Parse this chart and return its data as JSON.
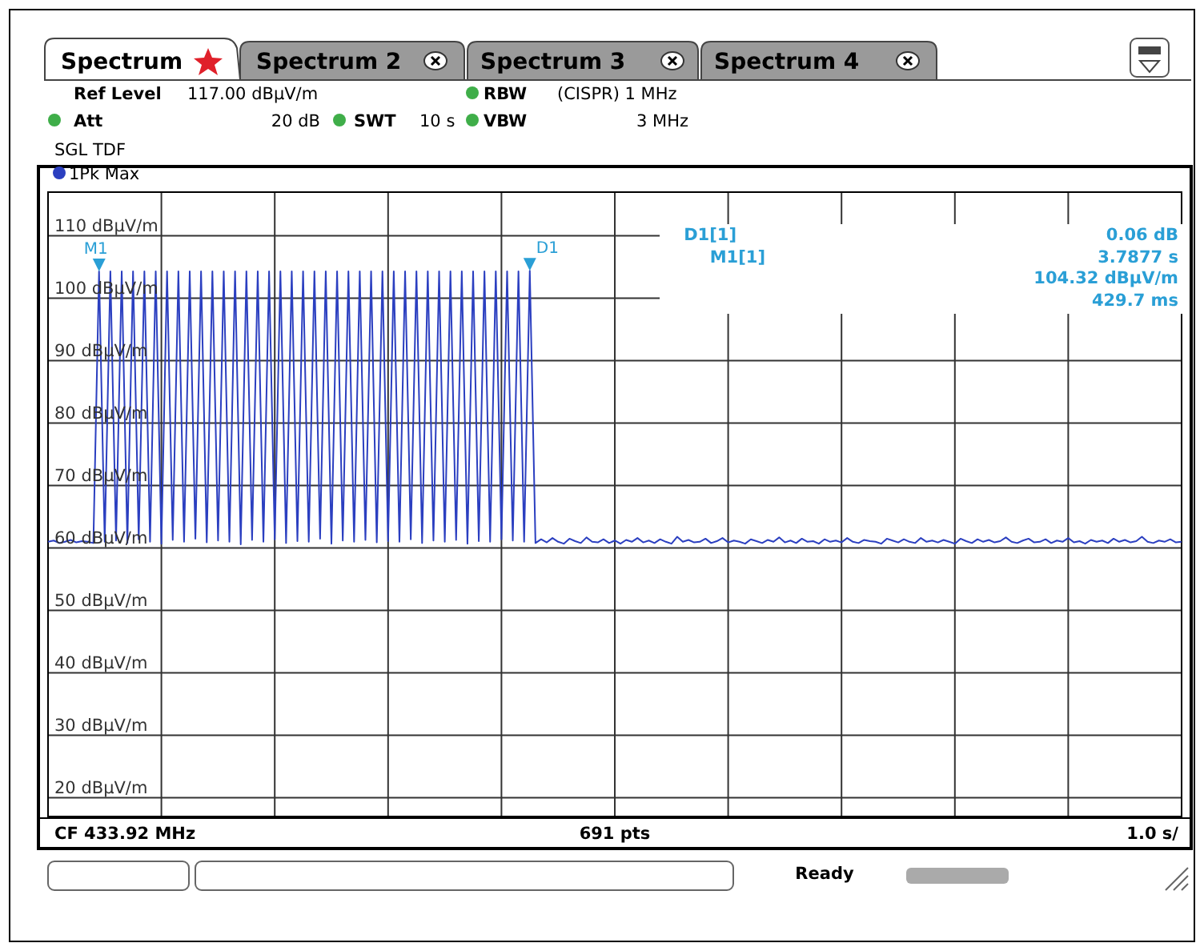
{
  "chart_data": {
    "type": "line",
    "ylim": [
      17,
      117
    ],
    "yticks": [
      {
        "value": 20,
        "label": "20 dBµV/m"
      },
      {
        "value": 30,
        "label": "30 dBµV/m"
      },
      {
        "value": 40,
        "label": "40 dBµV/m"
      },
      {
        "value": 50,
        "label": "50 dBµV/m"
      },
      {
        "value": 60,
        "label": "60 dBµV/m"
      },
      {
        "value": 70,
        "label": "70 dBµV/m"
      },
      {
        "value": 80,
        "label": "80 dBµV/m"
      },
      {
        "value": 90,
        "label": "90 dBµV/m"
      },
      {
        "value": 100,
        "label": "100 dBµV/m"
      },
      {
        "value": 110,
        "label": "110 dBµV/m"
      }
    ],
    "categories": [
      null,
      null,
      null,
      null,
      null,
      null,
      null,
      null,
      null,
      null,
      null,
      null,
      null,
      null,
      null,
      null,
      null,
      null,
      null,
      null,
      null,
      null,
      null,
      null,
      null,
      null,
      null,
      null,
      null,
      null,
      null,
      null,
      null,
      null,
      null,
      null,
      null,
      null,
      null,
      null,
      null,
      null,
      null,
      null,
      null,
      null,
      null,
      null,
      null,
      null,
      null,
      null,
      null,
      null,
      null,
      null,
      null,
      null,
      null,
      null,
      null,
      null,
      null,
      null,
      null,
      null,
      null,
      null,
      null,
      null,
      null,
      null,
      null,
      null,
      null,
      null,
      null,
      null,
      null,
      null,
      null,
      null,
      null,
      null,
      null,
      null,
      null,
      null,
      null,
      null,
      null,
      null,
      null,
      null,
      null,
      null,
      null,
      null,
      null,
      null,
      null,
      null,
      null,
      null,
      null,
      null,
      null,
      null,
      null,
      null,
      null,
      null,
      null,
      null,
      null,
      null,
      null,
      null,
      null,
      null,
      null,
      null,
      null,
      null,
      null,
      null,
      null,
      null,
      null,
      null,
      null,
      null,
      null,
      null,
      null,
      null,
      null,
      null,
      null,
      null,
      null,
      null,
      null,
      null,
      null,
      null,
      null,
      null,
      null,
      null,
      null,
      null,
      null,
      null,
      null,
      null,
      null,
      null,
      null,
      null,
      null,
      null,
      null,
      null,
      null,
      null,
      null,
      null,
      null,
      null,
      null,
      null,
      null,
      null,
      null,
      null,
      null,
      null,
      null,
      null,
      null,
      null,
      null,
      null,
      null,
      null,
      null,
      null,
      null,
      null,
      null,
      null,
      null,
      null,
      null,
      null,
      null,
      null,
      null,
      null,
      null
    ],
    "tick_labels": "y",
    "grid": true,
    "legend": "top left",
    "series": [
      {
        "name": "1Pk Max",
        "color": "#2b3fc0",
        "values": [
          61,
          61.2,
          60.8,
          61,
          61.3,
          60.9,
          61.1,
          61,
          60.8,
          104.3,
          61,
          104.3,
          61.2,
          104.3,
          60.8,
          104.3,
          61.4,
          104.3,
          61,
          104.3,
          60.7,
          104.3,
          61.3,
          104.3,
          61,
          104.3,
          61.5,
          104.3,
          60.9,
          104.3,
          61.2,
          104.3,
          61,
          104.3,
          60.6,
          104.3,
          61.3,
          104.3,
          61,
          104.3,
          61.4,
          104.3,
          60.8,
          104.3,
          61.1,
          104.3,
          61,
          104.3,
          61.5,
          104.3,
          60.7,
          104.3,
          61.2,
          104.3,
          61,
          104.3,
          61.3,
          104.3,
          60.9,
          104.3,
          61.1,
          104.3,
          61,
          104.3,
          61.4,
          104.3,
          60.8,
          104.3,
          61.2,
          104.3,
          61,
          104.3,
          61.3,
          104.3,
          60.7,
          104.3,
          61.1,
          104.3,
          61,
          104.3,
          61.4,
          104.3,
          61.2,
          104.3,
          61,
          104.4,
          60.8,
          61.4,
          60.9,
          61.6,
          61,
          60.7,
          61.5,
          61.1,
          60.8,
          61.7,
          61,
          60.9,
          61.4,
          60.8,
          61.2,
          60.7,
          61.3,
          61,
          61.6,
          60.9,
          61.2,
          60.8,
          61.4,
          61,
          60.7,
          61.8,
          61,
          61.3,
          60.9,
          61,
          61.5,
          60.8,
          61.1,
          61.6,
          60.9,
          61.2,
          61,
          60.7,
          61.4,
          61.1,
          60.8,
          61.3,
          61,
          61.7,
          60.9,
          61.2,
          60.8,
          61.5,
          61,
          61.1,
          60.7,
          61.4,
          61,
          61.2,
          60.9,
          61.6,
          61,
          60.8,
          61.3,
          61.1,
          61,
          60.7,
          61.5,
          61.2,
          60.9,
          61.4,
          61,
          60.8,
          61.6,
          61,
          61.2,
          60.9,
          61.3,
          61,
          60.7,
          61.5,
          61.1,
          60.8,
          61.4,
          61,
          61.3,
          60.9,
          61.1,
          61.7,
          61,
          60.8,
          61.2,
          61.5,
          60.9,
          61,
          61.4,
          60.8,
          61.2,
          61,
          61.6,
          60.9,
          61.1,
          60.7,
          61.3,
          61,
          61.2,
          60.8,
          61.5,
          61,
          61.3,
          60.9,
          61.1,
          61.8,
          61,
          60.8,
          61.2,
          61,
          61.4,
          60.9,
          61
        ]
      }
    ],
    "annotations": [
      "Spectrum",
      "Spectrum 2",
      "Spectrum 3",
      "Spectrum 4",
      "Ref Level",
      "117.00 dBµV/m",
      "Att",
      "20 dB",
      "SWT",
      "10 s",
      "RBW",
      "(CISPR) 1 MHz",
      "VBW",
      "3 MHz",
      "SGL TDF",
      "D1[1]",
      "0.06 dB",
      "3.7877 s",
      "M1[1]",
      "104.32 dBµV/m",
      "429.7 ms",
      "CF 433.92 MHz",
      "691 pts",
      "1.0 s/",
      "Ready",
      "M1",
      "D1"
    ]
  }
}
